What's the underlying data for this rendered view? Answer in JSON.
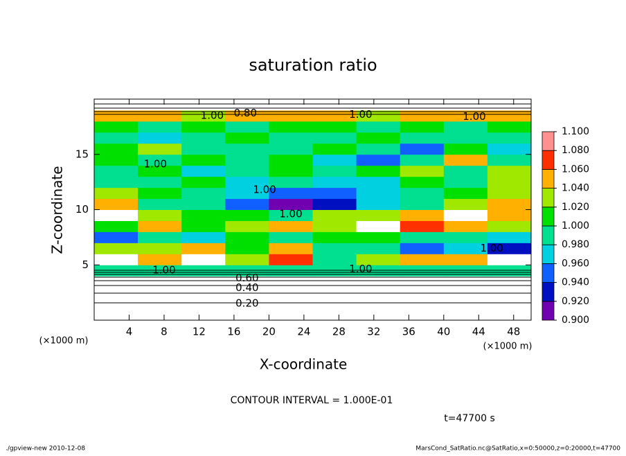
{
  "chart_data": {
    "type": "contour",
    "title": "saturation ratio",
    "xlabel": "X-coordinate",
    "ylabel": "Z-coordinate",
    "x_unit": "(×1000 m)",
    "y_unit": "(×1000 m)",
    "contour_interval": "CONTOUR INTERVAL = 1.000E-01",
    "time_label": "t=47700 s",
    "footer_left": "./gpview-new  2010-12-08",
    "footer_right": "MarsCond_SatRatio.nc@SatRatio,x=0:50000,z=0:20000,t=47700",
    "xlim": [
      0,
      50
    ],
    "ylim": [
      0,
      20
    ],
    "xticks": [
      4,
      8,
      12,
      16,
      20,
      24,
      28,
      32,
      36,
      40,
      44,
      48
    ],
    "yticks": [
      5,
      10,
      15
    ],
    "levels": [
      {
        "value": 0.9,
        "label": "0.900"
      },
      {
        "value": 0.92,
        "label": "0.920"
      },
      {
        "value": 0.94,
        "label": "0.940"
      },
      {
        "value": 0.96,
        "label": "0.960"
      },
      {
        "value": 0.98,
        "label": "0.980"
      },
      {
        "value": 1.0,
        "label": "1.000"
      },
      {
        "value": 1.02,
        "label": "1.020"
      },
      {
        "value": 1.04,
        "label": "1.040"
      },
      {
        "value": 1.06,
        "label": "1.060"
      },
      {
        "value": 1.08,
        "label": "1.080"
      },
      {
        "value": 1.1,
        "label": "1.100"
      }
    ],
    "colors": [
      "#7000b0",
      "#0010c0",
      "#1060ff",
      "#00d0e0",
      "#00e090",
      "#00e000",
      "#a0e800",
      "#ffb000",
      "#ff3000",
      "#ff9090"
    ],
    "values": [
      [
        0.1,
        0.1,
        0.1,
        0.1,
        0.1,
        0.1,
        0.1,
        0.1,
        0.1,
        0.1
      ],
      [
        0.25,
        0.25,
        0.25,
        0.25,
        0.25,
        0.25,
        0.25,
        0.25,
        0.25,
        0.25
      ],
      [
        0.4,
        0.4,
        0.4,
        0.4,
        0.4,
        0.4,
        0.4,
        0.4,
        0.4,
        0.4
      ],
      [
        0.75,
        0.75,
        0.75,
        0.75,
        0.75,
        0.75,
        0.75,
        0.75,
        0.75,
        0.75
      ],
      [
        0.99,
        1.0,
        1.0,
        0.99,
        1.0,
        1.0,
        1.0,
        0.99,
        1.0,
        0.99
      ],
      [
        1.12,
        1.06,
        1.12,
        1.03,
        1.08,
        1.0,
        1.04,
        1.06,
        1.05,
        1.12
      ],
      [
        1.04,
        1.03,
        1.05,
        1.02,
        1.06,
        1.0,
        0.99,
        0.95,
        0.97,
        0.94
      ],
      [
        0.96,
        1.0,
        0.98,
        1.01,
        1.0,
        1.02,
        1.01,
        0.99,
        1.0,
        0.97
      ],
      [
        1.02,
        1.05,
        1.01,
        1.03,
        1.05,
        1.03,
        1.12,
        1.07,
        1.06,
        1.03
      ],
      [
        1.12,
        1.04,
        1.01,
        1.02,
        1.0,
        1.04,
        1.03,
        1.06,
        1.12,
        1.05
      ],
      [
        1.05,
        1.0,
        0.99,
        0.95,
        0.92,
        0.93,
        0.98,
        1.0,
        1.03,
        1.05
      ],
      [
        1.03,
        1.01,
        1.0,
        0.98,
        0.96,
        0.95,
        0.97,
        0.99,
        1.02,
        1.04
      ],
      [
        0.99,
        1.0,
        1.01,
        0.97,
        0.99,
        0.98,
        0.97,
        1.01,
        1.0,
        1.03
      ],
      [
        1.0,
        1.02,
        0.98,
        1.0,
        1.01,
        0.99,
        1.02,
        1.03,
        1.0,
        1.04
      ],
      [
        1.01,
        1.0,
        1.01,
        1.0,
        1.02,
        0.98,
        0.95,
        0.99,
        1.05,
        1.0
      ],
      [
        1.02,
        1.04,
        1.0,
        0.99,
        1.0,
        1.01,
        1.0,
        0.96,
        1.02,
        0.98
      ],
      [
        1.0,
        0.97,
        1.0,
        1.01,
        1.0,
        1.0,
        1.01,
        0.99,
        1.0,
        1.0
      ],
      [
        1.01,
        1.0,
        1.02,
        1.0,
        1.01,
        1.02,
        1.0,
        1.01,
        1.0,
        1.02
      ],
      [
        1.05,
        1.06,
        1.04,
        1.05,
        1.06,
        1.05,
        1.04,
        1.05,
        1.06,
        1.05
      ],
      [
        0.8,
        0.8,
        0.8,
        0.8,
        0.8,
        0.8,
        0.8,
        0.8,
        0.8,
        0.8
      ]
    ],
    "annotations": [
      {
        "text": "1.00",
        "x": 13.5,
        "y": 18.5
      },
      {
        "text": "0.80",
        "x": 17.3,
        "y": 18.7
      },
      {
        "text": "1.00",
        "x": 30.5,
        "y": 18.6
      },
      {
        "text": "1.00",
        "x": 43.5,
        "y": 18.4
      },
      {
        "text": "1.00",
        "x": 7,
        "y": 14.1
      },
      {
        "text": "1.00",
        "x": 19.5,
        "y": 11.8
      },
      {
        "text": "1.00",
        "x": 22.5,
        "y": 9.6
      },
      {
        "text": "1.00",
        "x": 45.5,
        "y": 6.5
      },
      {
        "text": "1.00",
        "x": 8,
        "y": 4.5
      },
      {
        "text": "1.00",
        "x": 30.5,
        "y": 4.6
      },
      {
        "text": "0.60",
        "x": 17.5,
        "y": 3.8
      },
      {
        "text": "0.40",
        "x": 17.5,
        "y": 2.9
      },
      {
        "text": "0.20",
        "x": 17.5,
        "y": 1.5
      }
    ]
  }
}
